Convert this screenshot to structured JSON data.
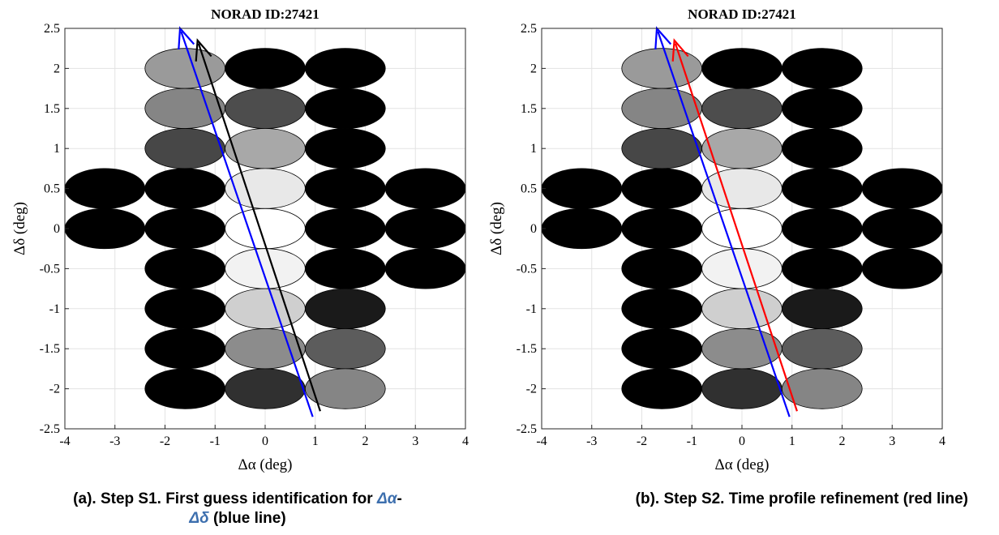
{
  "chart_data": [
    {
      "type": "scatter",
      "title": "NORAD ID:27421",
      "xlabel": "Δα (deg)",
      "ylabel": "Δδ (deg)",
      "xlim": [
        -4,
        4
      ],
      "ylim": [
        -2.5,
        2.5
      ],
      "xticks": [
        -4,
        -3,
        -2,
        -1,
        0,
        1,
        2,
        3,
        4
      ],
      "yticks": [
        -2.5,
        -2,
        -1.5,
        -1,
        -0.5,
        0,
        0.5,
        1,
        1.5,
        2,
        2.5
      ],
      "grid": true,
      "cells": [
        {
          "x": -1.6,
          "y": 2.0,
          "color": "#9a9a9a"
        },
        {
          "x": 0.0,
          "y": 2.0,
          "color": "#000000"
        },
        {
          "x": 1.6,
          "y": 2.0,
          "color": "#000000"
        },
        {
          "x": -1.6,
          "y": 1.5,
          "color": "#858585"
        },
        {
          "x": 0.0,
          "y": 1.5,
          "color": "#4d4d4d"
        },
        {
          "x": 1.6,
          "y": 1.5,
          "color": "#000000"
        },
        {
          "x": -1.6,
          "y": 1.0,
          "color": "#474747"
        },
        {
          "x": 0.0,
          "y": 1.0,
          "color": "#a8a8a8"
        },
        {
          "x": 1.6,
          "y": 1.0,
          "color": "#000000"
        },
        {
          "x": -3.2,
          "y": 0.5,
          "color": "#000000"
        },
        {
          "x": -1.6,
          "y": 0.5,
          "color": "#000000"
        },
        {
          "x": 0.0,
          "y": 0.5,
          "color": "#e8e8e8"
        },
        {
          "x": 1.6,
          "y": 0.5,
          "color": "#000000"
        },
        {
          "x": 3.2,
          "y": 0.5,
          "color": "#000000"
        },
        {
          "x": -3.2,
          "y": 0.0,
          "color": "#000000"
        },
        {
          "x": -1.6,
          "y": 0.0,
          "color": "#000000"
        },
        {
          "x": 0.0,
          "y": 0.0,
          "color": "#ffffff"
        },
        {
          "x": 1.6,
          "y": 0.0,
          "color": "#000000"
        },
        {
          "x": 3.2,
          "y": 0.0,
          "color": "#000000"
        },
        {
          "x": -1.6,
          "y": -0.5,
          "color": "#000000"
        },
        {
          "x": 0.0,
          "y": -0.5,
          "color": "#f2f2f2"
        },
        {
          "x": 1.6,
          "y": -0.5,
          "color": "#000000"
        },
        {
          "x": 3.2,
          "y": -0.5,
          "color": "#000000"
        },
        {
          "x": -1.6,
          "y": -1.0,
          "color": "#000000"
        },
        {
          "x": 0.0,
          "y": -1.0,
          "color": "#cfcfcf"
        },
        {
          "x": 1.6,
          "y": -1.0,
          "color": "#1a1a1a"
        },
        {
          "x": -1.6,
          "y": -1.5,
          "color": "#000000"
        },
        {
          "x": 0.0,
          "y": -1.5,
          "color": "#8c8c8c"
        },
        {
          "x": 1.6,
          "y": -1.5,
          "color": "#5c5c5c"
        },
        {
          "x": -1.6,
          "y": -2.0,
          "color": "#000000"
        },
        {
          "x": 0.0,
          "y": -2.0,
          "color": "#303030"
        },
        {
          "x": 1.6,
          "y": -2.0,
          "color": "#858585"
        }
      ],
      "arrows": [
        {
          "color": "#0000ff",
          "from": [
            0.95,
            -2.35
          ],
          "to": [
            -1.7,
            2.5
          ]
        },
        {
          "color": "#000000",
          "from": [
            1.1,
            -2.28
          ],
          "to": [
            -1.35,
            2.35
          ]
        }
      ]
    },
    {
      "type": "scatter",
      "title": "NORAD ID:27421",
      "xlabel": "Δα (deg)",
      "ylabel": "Δδ (deg)",
      "xlim": [
        -4,
        4
      ],
      "ylim": [
        -2.5,
        2.5
      ],
      "xticks": [
        -4,
        -3,
        -2,
        -1,
        0,
        1,
        2,
        3,
        4
      ],
      "yticks": [
        -2.5,
        -2,
        -1.5,
        -1,
        -0.5,
        0,
        0.5,
        1,
        1.5,
        2,
        2.5
      ],
      "grid": true,
      "cells": [
        {
          "x": -1.6,
          "y": 2.0,
          "color": "#9a9a9a"
        },
        {
          "x": 0.0,
          "y": 2.0,
          "color": "#000000"
        },
        {
          "x": 1.6,
          "y": 2.0,
          "color": "#000000"
        },
        {
          "x": -1.6,
          "y": 1.5,
          "color": "#858585"
        },
        {
          "x": 0.0,
          "y": 1.5,
          "color": "#4d4d4d"
        },
        {
          "x": 1.6,
          "y": 1.5,
          "color": "#000000"
        },
        {
          "x": -1.6,
          "y": 1.0,
          "color": "#474747"
        },
        {
          "x": 0.0,
          "y": 1.0,
          "color": "#a8a8a8"
        },
        {
          "x": 1.6,
          "y": 1.0,
          "color": "#000000"
        },
        {
          "x": -3.2,
          "y": 0.5,
          "color": "#000000"
        },
        {
          "x": -1.6,
          "y": 0.5,
          "color": "#000000"
        },
        {
          "x": 0.0,
          "y": 0.5,
          "color": "#e8e8e8"
        },
        {
          "x": 1.6,
          "y": 0.5,
          "color": "#000000"
        },
        {
          "x": 3.2,
          "y": 0.5,
          "color": "#000000"
        },
        {
          "x": -3.2,
          "y": 0.0,
          "color": "#000000"
        },
        {
          "x": -1.6,
          "y": 0.0,
          "color": "#000000"
        },
        {
          "x": 0.0,
          "y": 0.0,
          "color": "#ffffff"
        },
        {
          "x": 1.6,
          "y": 0.0,
          "color": "#000000"
        },
        {
          "x": 3.2,
          "y": 0.0,
          "color": "#000000"
        },
        {
          "x": -1.6,
          "y": -0.5,
          "color": "#000000"
        },
        {
          "x": 0.0,
          "y": -0.5,
          "color": "#f2f2f2"
        },
        {
          "x": 1.6,
          "y": -0.5,
          "color": "#000000"
        },
        {
          "x": 3.2,
          "y": -0.5,
          "color": "#000000"
        },
        {
          "x": -1.6,
          "y": -1.0,
          "color": "#000000"
        },
        {
          "x": 0.0,
          "y": -1.0,
          "color": "#cfcfcf"
        },
        {
          "x": 1.6,
          "y": -1.0,
          "color": "#1a1a1a"
        },
        {
          "x": -1.6,
          "y": -1.5,
          "color": "#000000"
        },
        {
          "x": 0.0,
          "y": -1.5,
          "color": "#8c8c8c"
        },
        {
          "x": 1.6,
          "y": -1.5,
          "color": "#5c5c5c"
        },
        {
          "x": -1.6,
          "y": -2.0,
          "color": "#000000"
        },
        {
          "x": 0.0,
          "y": -2.0,
          "color": "#303030"
        },
        {
          "x": 1.6,
          "y": -2.0,
          "color": "#858585"
        }
      ],
      "arrows": [
        {
          "color": "#0000ff",
          "from": [
            0.95,
            -2.35
          ],
          "to": [
            -1.7,
            2.5
          ]
        },
        {
          "color": "#ff0000",
          "from": [
            1.1,
            -2.28
          ],
          "to": [
            -1.35,
            2.35
          ]
        }
      ]
    }
  ],
  "captions": {
    "a_prefix": "(a). Step S1. First guess identification for ",
    "a_sym1": "Δα",
    "a_mid": "-",
    "a_sym2": "Δδ",
    "a_suffix": " (blue line)",
    "b": "(b). Step S2. Time profile refinement (red line)"
  }
}
